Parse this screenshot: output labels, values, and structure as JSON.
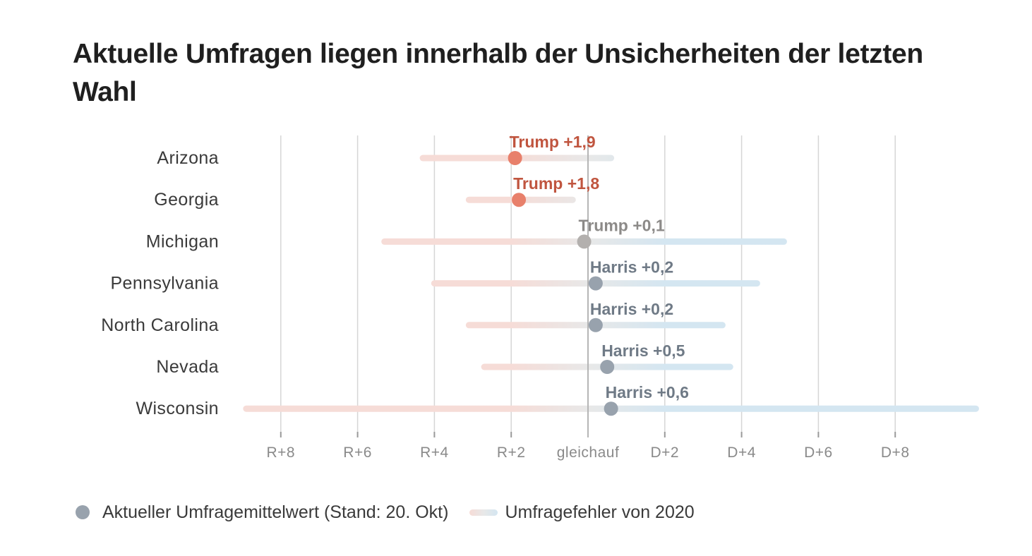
{
  "title": "Aktuelle Umfragen liegen innerhalb der Unsicherheiten der letzten Wahl",
  "legend": {
    "poll_label": "Aktueller Umfragemittelwert (Stand: 20. Okt)",
    "error_label": "Umfragefehler von 2020"
  },
  "colors": {
    "trump": "#e8806b",
    "trump_text": "#c0553f",
    "neutral_dot": "#b3b0ae",
    "neutral_text": "#8c8a88",
    "harris_dot": "#98a2ad",
    "harris_text": "#6f7a86",
    "error_red": "#f6dcd7",
    "error_gray": "#e8e8e8",
    "error_blue": "#d4e6f1",
    "gridline": "#d6d6d6",
    "zero_line": "#b5b5b5"
  },
  "chart_data": {
    "type": "dot-range",
    "title": "Aktuelle Umfragen liegen innerhalb der Unsicherheiten der letzten Wahl",
    "x_unit": "margin in percentage points (negative = R, positive = D)",
    "xlim": [
      -8,
      8
    ],
    "x_ticks": [
      {
        "value": -8,
        "label": "R+8"
      },
      {
        "value": -6,
        "label": "R+6"
      },
      {
        "value": -4,
        "label": "R+4"
      },
      {
        "value": -2,
        "label": "R+2"
      },
      {
        "value": 0,
        "label": "gleichauf"
      },
      {
        "value": 2,
        "label": "D+2"
      },
      {
        "value": 4,
        "label": "D+4"
      },
      {
        "value": 6,
        "label": "D+6"
      },
      {
        "value": 8,
        "label": "D+8"
      }
    ],
    "grid": true,
    "legend_position": "bottom-left",
    "series": [
      {
        "name": "Aktueller Umfragemittelwert (Stand: 20. Okt)"
      },
      {
        "name": "Umfragefehler von 2020"
      }
    ],
    "rows": [
      {
        "state": "Arizona",
        "poll": -1.9,
        "label": "Trump +1,9",
        "leader": "trump",
        "error_range": [
          -4.3,
          0.6
        ]
      },
      {
        "state": "Georgia",
        "poll": -1.8,
        "label": "Trump +1,8",
        "leader": "trump",
        "error_range": [
          -3.1,
          -0.4
        ]
      },
      {
        "state": "Michigan",
        "poll": -0.1,
        "label": "Trump +0,1",
        "leader": "neutral",
        "error_range": [
          -5.3,
          5.1
        ]
      },
      {
        "state": "Pennsylvania",
        "poll": 0.2,
        "label": "Harris +0,2",
        "leader": "harris",
        "error_range": [
          -4.0,
          4.4
        ]
      },
      {
        "state": "North Carolina",
        "poll": 0.2,
        "label": "Harris +0,2",
        "leader": "harris",
        "error_range": [
          -3.1,
          3.5
        ]
      },
      {
        "state": "Nevada",
        "poll": 0.5,
        "label": "Harris +0,5",
        "leader": "harris",
        "error_range": [
          -2.7,
          3.7
        ]
      },
      {
        "state": "Wisconsin",
        "poll": 0.6,
        "label": "Harris +0,6",
        "leader": "harris",
        "error_range": [
          -8.9,
          10.1
        ]
      }
    ]
  }
}
